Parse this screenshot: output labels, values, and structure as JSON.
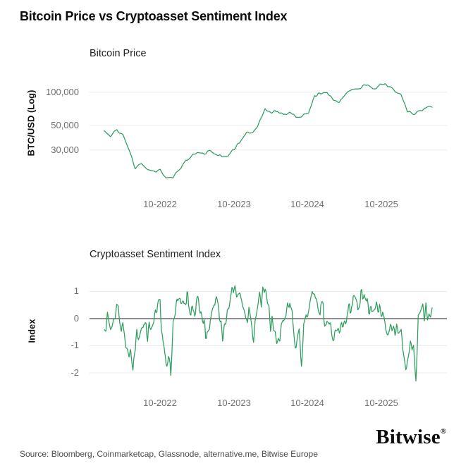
{
  "page": {
    "title": "Bitcoin Price vs Cryptoasset Sentiment Index",
    "source": "Source: Bloomberg, Coinmarketcap, Glassnode, alternative.me, Bitwise Europe",
    "logo": "Bitwise",
    "logo_mark": "®",
    "colors": {
      "accent_green": "#2d9e5e",
      "grid": "#ececec",
      "zero_line": "#696969",
      "tick_text": "#6e6e6e"
    }
  },
  "chart_data": [
    {
      "type": "line",
      "title": "Bitcoin Price",
      "ylabel": "BTC/USD (Log)",
      "yscale": "log",
      "ylim": [
        12600,
        169000
      ],
      "grid": true,
      "legend": "none",
      "line_color": "#2d9e5e",
      "yticks": [
        {
          "v": 100000,
          "label": "100,000"
        },
        {
          "v": 50000,
          "label": "50,000"
        },
        {
          "v": 30000,
          "label": "30,000"
        }
      ],
      "xticks": [
        {
          "i": 9,
          "label": "10-2022"
        },
        {
          "i": 21,
          "label": "10-2023"
        },
        {
          "i": 33,
          "label": "10-2024"
        },
        {
          "i": 45,
          "label": "10-2025"
        }
      ],
      "x_monthly": [
        "2022-01",
        "2022-02",
        "2022-03",
        "2022-04",
        "2022-05",
        "2022-06",
        "2022-07",
        "2022-08",
        "2022-09",
        "2022-10",
        "2022-11",
        "2022-12",
        "2023-01",
        "2023-02",
        "2023-03",
        "2023-04",
        "2023-05",
        "2023-06",
        "2023-07",
        "2023-08",
        "2023-09",
        "2023-10",
        "2023-11",
        "2023-12",
        "2024-01",
        "2024-02",
        "2024-03",
        "2024-04",
        "2024-05",
        "2024-06",
        "2024-07",
        "2024-08",
        "2024-09",
        "2024-10",
        "2024-11",
        "2024-12",
        "2025-01",
        "2025-02",
        "2025-03",
        "2025-04",
        "2025-05",
        "2025-06",
        "2025-07",
        "2025-08",
        "2025-09",
        "2025-10",
        "2025-11",
        "2025-12",
        "2026-01",
        "2026-02",
        "2026-03",
        "2026-04",
        "2026-05",
        "2026-06"
      ],
      "values": [
        45000,
        39000,
        45000,
        41000,
        30000,
        20000,
        23000,
        20000,
        19500,
        20500,
        16500,
        16800,
        20000,
        23000,
        27000,
        28500,
        27000,
        29500,
        29000,
        26500,
        27000,
        30000,
        36000,
        42000,
        43000,
        52000,
        69000,
        64000,
        67000,
        61000,
        65000,
        58000,
        62000,
        66000,
        95000,
        97000,
        102000,
        85000,
        83000,
        94000,
        105000,
        107000,
        118000,
        113000,
        112000,
        120000,
        112000,
        105000,
        95000,
        68000,
        64000,
        68000,
        70000,
        76000
      ],
      "samples_per_month": 5,
      "noise_amp": [
        0.03,
        0.022
      ],
      "noise_freq": [
        2,
        9
      ],
      "seed": 11
    },
    {
      "type": "line",
      "title": "Cryptoasset Sentiment Index",
      "ylabel": "Index",
      "yscale": "linear",
      "ylim": [
        -2.676,
        1.74
      ],
      "grid": true,
      "legend": "none",
      "zero_line": true,
      "line_color": "#2d9e5e",
      "yticks": [
        {
          "v": 1,
          "label": "1"
        },
        {
          "v": 0,
          "label": "0"
        },
        {
          "v": -1,
          "label": "-1"
        },
        {
          "v": -2,
          "label": "-2"
        }
      ],
      "xticks": [
        {
          "i": 9,
          "label": "10-2022"
        },
        {
          "i": 21,
          "label": "10-2023"
        },
        {
          "i": 33,
          "label": "10-2024"
        },
        {
          "i": 45,
          "label": "10-2025"
        }
      ],
      "x_monthly": [
        "2022-01",
        "2022-02",
        "2022-03",
        "2022-04",
        "2022-05",
        "2022-06",
        "2022-07",
        "2022-08",
        "2022-09",
        "2022-10",
        "2022-11",
        "2022-12",
        "2023-01",
        "2023-02",
        "2023-03",
        "2023-04",
        "2023-05",
        "2023-06",
        "2023-07",
        "2023-08",
        "2023-09",
        "2023-10",
        "2023-11",
        "2023-12",
        "2024-01",
        "2024-02",
        "2024-03",
        "2024-04",
        "2024-05",
        "2024-06",
        "2024-07",
        "2024-08",
        "2024-09",
        "2024-10",
        "2024-11",
        "2024-12",
        "2025-01",
        "2025-02",
        "2025-03",
        "2025-04",
        "2025-05",
        "2025-06",
        "2025-07",
        "2025-08",
        "2025-09",
        "2025-10",
        "2025-11",
        "2025-12",
        "2026-01",
        "2026-02",
        "2026-03",
        "2026-04",
        "2026-05",
        "2026-06"
      ],
      "values": [
        -0.1,
        -0.5,
        0.4,
        -0.5,
        -1.3,
        -1.0,
        -0.1,
        -0.4,
        -0.3,
        0.3,
        -1.6,
        0.0,
        0.7,
        0.8,
        0.3,
        0.6,
        -0.4,
        -0.6,
        0.5,
        -0.7,
        0.0,
        0.8,
        0.9,
        0.6,
        -0.4,
        0.6,
        0.9,
        -0.3,
        -0.6,
        -0.5,
        0.2,
        -1.2,
        -0.4,
        0.4,
        1.1,
        0.4,
        0.1,
        -0.7,
        -0.8,
        -0.2,
        0.6,
        0.2,
        1.0,
        0.1,
        0.4,
        -0.4,
        -0.9,
        -0.5,
        -0.6,
        -1.5,
        -0.6,
        -0.1,
        0.1,
        0.4
      ],
      "extremes": [
        {
          "i": 4.6,
          "v": -1.9
        },
        {
          "i": 10.7,
          "v": -2.1
        },
        {
          "i": 31.9,
          "v": -1.75
        },
        {
          "i": 50.4,
          "v": -2.3
        }
      ],
      "clamp": [
        -2.35,
        1.35
      ],
      "samples_per_month": 8,
      "noise_amp": [
        0.9,
        0.5
      ],
      "noise_freq": [
        2,
        12
      ],
      "seed": 7
    }
  ]
}
